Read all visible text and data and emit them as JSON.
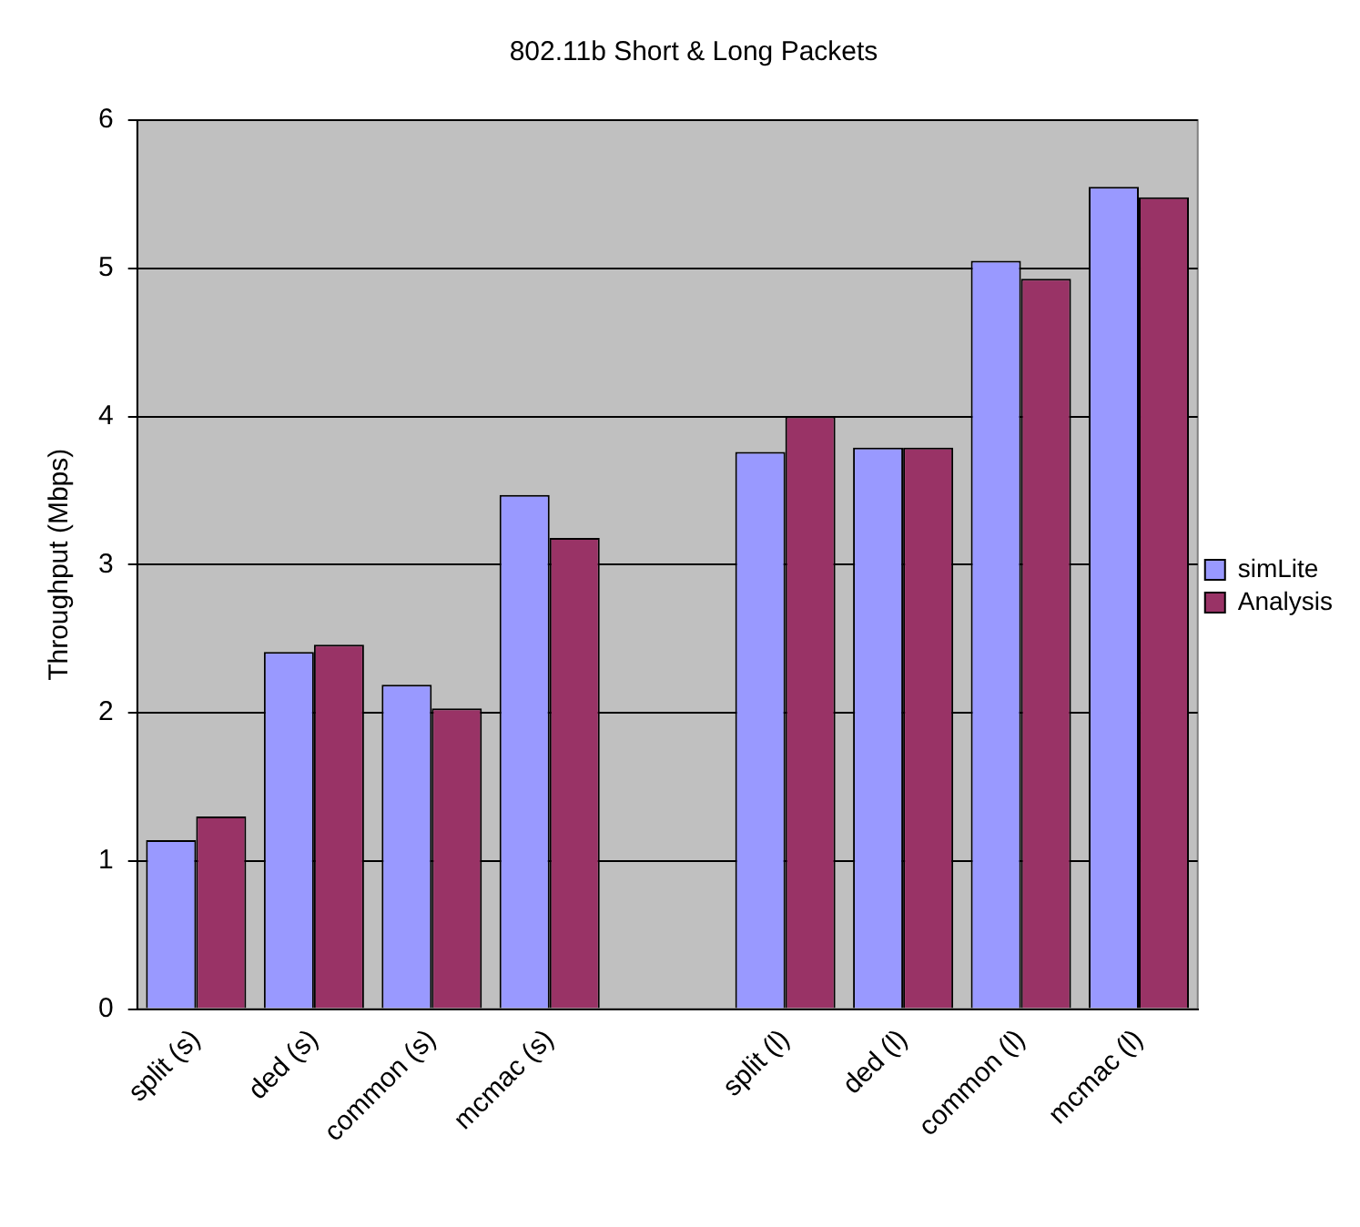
{
  "chart_data": {
    "type": "bar",
    "title": "802.11b Short & Long Packets",
    "ylabel": "Throughput (Mbps)",
    "categories": [
      "split (s)",
      "ded (s)",
      "common (s)",
      "mcmac (s)",
      null,
      "split (l)",
      "ded (l)",
      "common (l)",
      "mcmac (l)"
    ],
    "series": [
      {
        "name": "simLite",
        "color": "#9999ff",
        "values": [
          1.14,
          2.41,
          2.19,
          3.47,
          null,
          3.76,
          3.79,
          5.05,
          5.55
        ]
      },
      {
        "name": "Analysis",
        "color": "#993366",
        "values": [
          1.3,
          2.46,
          2.03,
          3.18,
          null,
          4.0,
          3.79,
          4.93,
          5.48
        ]
      }
    ],
    "ylim": [
      0,
      6
    ],
    "yticks": [
      0,
      1,
      2,
      3,
      4,
      5,
      6
    ],
    "grid": "y",
    "legend": "right"
  }
}
